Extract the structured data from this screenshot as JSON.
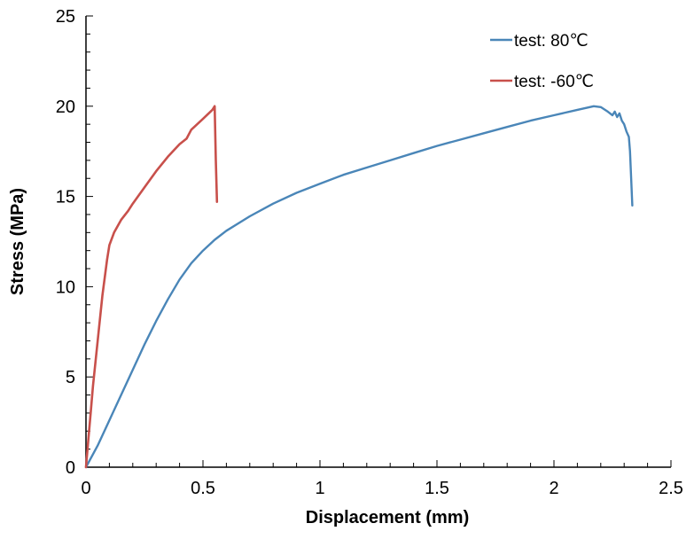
{
  "chart_data": {
    "type": "line",
    "xlabel": "Displacement (mm)",
    "ylabel": "Stress (MPa)",
    "xlim": [
      0,
      2.5
    ],
    "ylim": [
      0,
      25
    ],
    "x_ticks": [
      0,
      0.5,
      1,
      1.5,
      2,
      2.5
    ],
    "x_tick_labels": [
      "0",
      "0.5",
      "1",
      "1.5",
      "2",
      "2.5"
    ],
    "y_ticks": [
      0,
      5,
      10,
      15,
      20,
      25
    ],
    "y_tick_labels": [
      "0",
      "5",
      "10",
      "15",
      "20",
      "25"
    ],
    "grid": false,
    "legend_position": "top-right",
    "series": [
      {
        "name": "test: 80℃",
        "color": "#4a86b8",
        "x": [
          0,
          0.05,
          0.1,
          0.15,
          0.2,
          0.25,
          0.3,
          0.35,
          0.4,
          0.45,
          0.5,
          0.55,
          0.6,
          0.7,
          0.8,
          0.9,
          1.0,
          1.1,
          1.2,
          1.3,
          1.4,
          1.5,
          1.6,
          1.7,
          1.8,
          1.9,
          2.0,
          2.1,
          2.17,
          2.2,
          2.23,
          2.25,
          2.26,
          2.27,
          2.28,
          2.29,
          2.3,
          2.31,
          2.32,
          2.325,
          2.33,
          2.335
        ],
        "y": [
          0,
          1.2,
          2.6,
          4.0,
          5.4,
          6.8,
          8.1,
          9.3,
          10.4,
          11.3,
          12.0,
          12.6,
          13.1,
          13.9,
          14.6,
          15.2,
          15.7,
          16.2,
          16.6,
          17.0,
          17.4,
          17.8,
          18.15,
          18.5,
          18.85,
          19.2,
          19.5,
          19.8,
          20.0,
          19.95,
          19.7,
          19.5,
          19.7,
          19.4,
          19.6,
          19.2,
          19.0,
          18.6,
          18.3,
          17.5,
          16.0,
          14.5
        ]
      },
      {
        "name": "test: -60℃",
        "color": "#c8504b",
        "x": [
          0,
          0.01,
          0.02,
          0.03,
          0.05,
          0.07,
          0.09,
          0.1,
          0.12,
          0.15,
          0.18,
          0.2,
          0.25,
          0.3,
          0.35,
          0.4,
          0.43,
          0.45,
          0.5,
          0.54,
          0.55,
          0.555,
          0.56
        ],
        "y": [
          0,
          1.5,
          3.0,
          4.5,
          7.0,
          9.5,
          11.5,
          12.3,
          13.0,
          13.7,
          14.2,
          14.6,
          15.5,
          16.4,
          17.2,
          17.9,
          18.2,
          18.7,
          19.3,
          19.8,
          20.0,
          17.0,
          14.7
        ]
      }
    ]
  }
}
